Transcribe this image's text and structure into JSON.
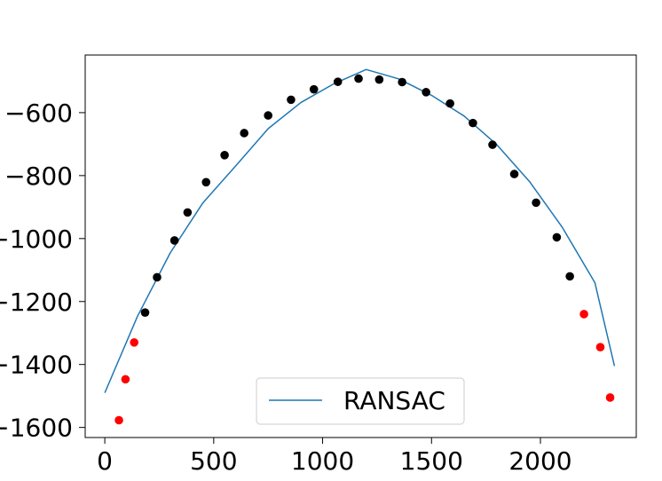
{
  "chart_data": {
    "type": "scatter",
    "title": "",
    "xlabel": "",
    "ylabel": "",
    "xlim": [
      -90,
      2440
    ],
    "ylim": [
      -1632,
      -417
    ],
    "xticks": [
      0,
      500,
      1000,
      1500,
      2000
    ],
    "xtick_labels": [
      "0",
      "500",
      "1000",
      "1500",
      "2000"
    ],
    "yticks": [
      -600,
      -800,
      -1000,
      -1200,
      -1400,
      -1600
    ],
    "ytick_labels": [
      "−600",
      "−800",
      "−1000",
      "−1200",
      "−1400",
      "−1600"
    ],
    "grid": false,
    "legend": {
      "placement": "lower-center",
      "entries": [
        "RANSAC"
      ]
    },
    "series": [
      {
        "type": "line",
        "name": "RANSAC",
        "color": "#1f77b4",
        "x": [
          0,
          150,
          300,
          450,
          600,
          750,
          900,
          1050,
          1200,
          1350,
          1500,
          1650,
          1800,
          1950,
          2100,
          2250,
          2340
        ],
        "y": [
          -1490,
          -1247,
          -1046,
          -887,
          -770,
          -651,
          -568,
          -509,
          -463,
          -493,
          -545,
          -611,
          -702,
          -819,
          -964,
          -1140,
          -1405
        ]
      },
      {
        "type": "scatter",
        "role": "inliers",
        "color": "#000000",
        "x": [
          185,
          240,
          320,
          380,
          465,
          550,
          640,
          750,
          855,
          960,
          1070,
          1165,
          1260,
          1365,
          1475,
          1585,
          1690,
          1780,
          1880,
          1980,
          2075,
          2135
        ],
        "y": [
          -1235,
          -1123,
          -1006,
          -917,
          -821,
          -735,
          -665,
          -609,
          -559,
          -526,
          -502,
          -492,
          -495,
          -503,
          -535,
          -571,
          -633,
          -702,
          -795,
          -886,
          -996,
          -1120
        ]
      },
      {
        "type": "scatter",
        "role": "outliers",
        "color": "#ff0000",
        "x": [
          65,
          95,
          135,
          2200,
          2275,
          2320
        ],
        "y": [
          -1577,
          -1447,
          -1330,
          -1240,
          -1345,
          -1505
        ]
      }
    ]
  }
}
